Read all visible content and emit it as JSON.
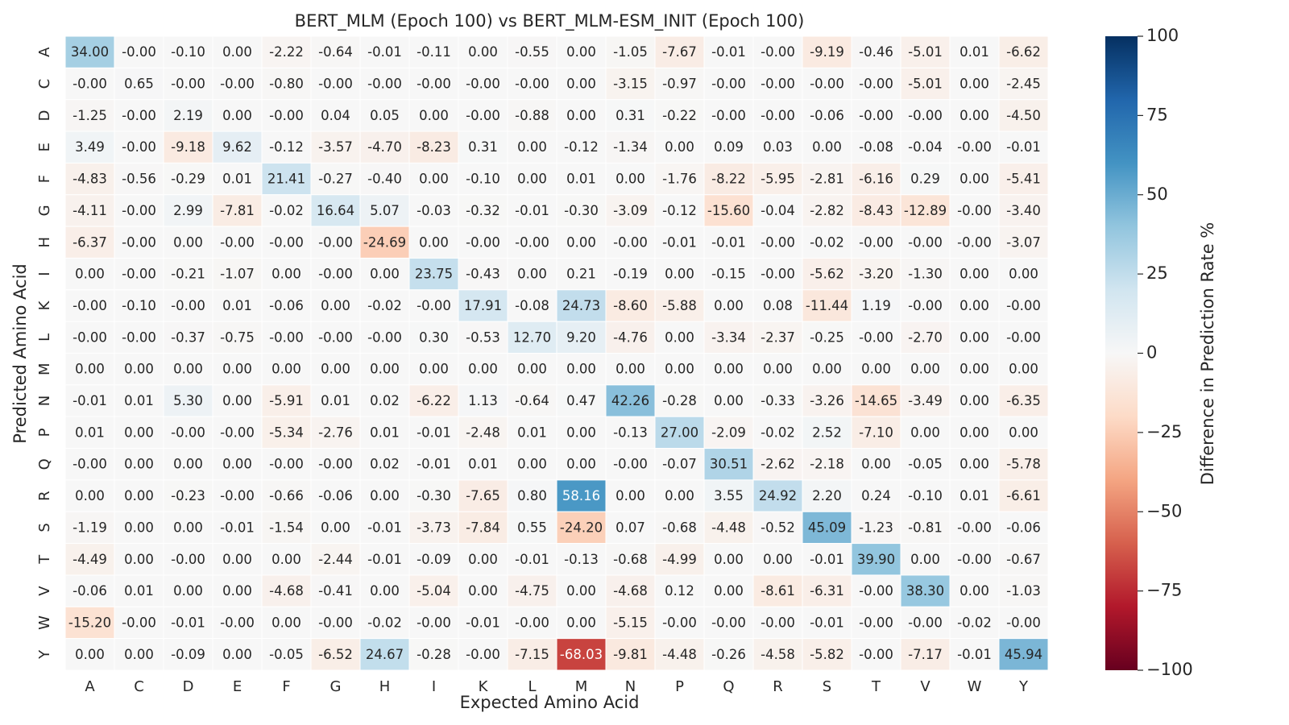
{
  "chart_data": {
    "type": "heatmap",
    "title": "BERT_MLM (Epoch 100) vs BERT_MLM-ESM_INIT (Epoch 100)",
    "xlabel": "Expected Amino Acid",
    "ylabel": "Predicted Amino Acid",
    "colorbar_label": "Difference in Prediction Rate %",
    "colorbar_ticks": [
      100,
      75,
      50,
      25,
      0,
      -25,
      -50,
      -75,
      -100
    ],
    "colorbar_tick_labels": [
      "100",
      "75",
      "50",
      "25",
      "0",
      "−25",
      "−50",
      "−75",
      "−100"
    ],
    "vmin": -100,
    "vmax": 100,
    "colormap": "RdBu",
    "x_categories": [
      "A",
      "C",
      "D",
      "E",
      "F",
      "G",
      "H",
      "I",
      "K",
      "L",
      "M",
      "N",
      "P",
      "Q",
      "R",
      "S",
      "T",
      "V",
      "W",
      "Y"
    ],
    "y_categories": [
      "A",
      "C",
      "D",
      "E",
      "F",
      "G",
      "H",
      "I",
      "K",
      "L",
      "M",
      "N",
      "P",
      "Q",
      "R",
      "S",
      "T",
      "V",
      "W",
      "Y"
    ],
    "values": [
      [
        "34.00",
        "-0.00",
        "-0.10",
        "0.00",
        "-2.22",
        "-0.64",
        "-0.01",
        "-0.11",
        "0.00",
        "-0.55",
        "0.00",
        "-1.05",
        "-7.67",
        "-0.01",
        "-0.00",
        "-9.19",
        "-0.46",
        "-5.01",
        "0.01",
        "-6.62"
      ],
      [
        "-0.00",
        "0.65",
        "-0.00",
        "-0.00",
        "-0.80",
        "-0.00",
        "-0.00",
        "-0.00",
        "-0.00",
        "-0.00",
        "0.00",
        "-3.15",
        "-0.97",
        "-0.00",
        "-0.00",
        "-0.00",
        "-0.00",
        "-5.01",
        "0.00",
        "-2.45"
      ],
      [
        "-1.25",
        "-0.00",
        "2.19",
        "0.00",
        "-0.00",
        "0.04",
        "0.05",
        "0.00",
        "-0.00",
        "-0.88",
        "0.00",
        "0.31",
        "-0.22",
        "-0.00",
        "-0.00",
        "-0.06",
        "-0.00",
        "-0.00",
        "0.00",
        "-4.50"
      ],
      [
        "3.49",
        "-0.00",
        "-9.18",
        "9.62",
        "-0.12",
        "-3.57",
        "-4.70",
        "-8.23",
        "0.31",
        "0.00",
        "-0.12",
        "-1.34",
        "0.00",
        "0.09",
        "0.03",
        "0.00",
        "-0.08",
        "-0.04",
        "-0.00",
        "-0.01"
      ],
      [
        "-4.83",
        "-0.56",
        "-0.29",
        "0.01",
        "21.41",
        "-0.27",
        "-0.40",
        "0.00",
        "-0.10",
        "0.00",
        "0.01",
        "0.00",
        "-1.76",
        "-8.22",
        "-5.95",
        "-2.81",
        "-6.16",
        "0.29",
        "0.00",
        "-5.41"
      ],
      [
        "-4.11",
        "-0.00",
        "2.99",
        "-7.81",
        "-0.02",
        "16.64",
        "5.07",
        "-0.03",
        "-0.32",
        "-0.01",
        "-0.30",
        "-3.09",
        "-0.12",
        "-15.60",
        "-0.04",
        "-2.82",
        "-8.43",
        "-12.89",
        "-0.00",
        "-3.40"
      ],
      [
        "-6.37",
        "-0.00",
        "0.00",
        "-0.00",
        "-0.00",
        "-0.00",
        "-24.69",
        "0.00",
        "-0.00",
        "-0.00",
        "0.00",
        "-0.00",
        "-0.01",
        "-0.01",
        "-0.00",
        "-0.02",
        "-0.00",
        "-0.00",
        "-0.00",
        "-3.07"
      ],
      [
        "0.00",
        "-0.00",
        "-0.21",
        "-1.07",
        "0.00",
        "-0.00",
        "0.00",
        "23.75",
        "-0.43",
        "0.00",
        "0.21",
        "-0.19",
        "0.00",
        "-0.15",
        "-0.00",
        "-5.62",
        "-3.20",
        "-1.30",
        "0.00",
        "0.00"
      ],
      [
        "-0.00",
        "-0.10",
        "-0.00",
        "0.01",
        "-0.06",
        "0.00",
        "-0.02",
        "-0.00",
        "17.91",
        "-0.08",
        "24.73",
        "-8.60",
        "-5.88",
        "0.00",
        "0.08",
        "-11.44",
        "1.19",
        "-0.00",
        "0.00",
        "-0.00"
      ],
      [
        "-0.00",
        "-0.00",
        "-0.37",
        "-0.75",
        "-0.00",
        "-0.00",
        "-0.00",
        "0.30",
        "-0.53",
        "12.70",
        "9.20",
        "-4.76",
        "0.00",
        "-3.34",
        "-2.37",
        "-0.25",
        "-0.00",
        "-2.70",
        "0.00",
        "-0.00"
      ],
      [
        "0.00",
        "0.00",
        "0.00",
        "0.00",
        "0.00",
        "0.00",
        "0.00",
        "0.00",
        "0.00",
        "0.00",
        "0.00",
        "0.00",
        "0.00",
        "0.00",
        "0.00",
        "0.00",
        "0.00",
        "0.00",
        "0.00",
        "0.00"
      ],
      [
        "-0.01",
        "0.01",
        "5.30",
        "0.00",
        "-5.91",
        "0.01",
        "0.02",
        "-6.22",
        "1.13",
        "-0.64",
        "0.47",
        "42.26",
        "-0.28",
        "0.00",
        "-0.33",
        "-3.26",
        "-14.65",
        "-3.49",
        "0.00",
        "-6.35"
      ],
      [
        "0.01",
        "0.00",
        "-0.00",
        "-0.00",
        "-5.34",
        "-2.76",
        "0.01",
        "-0.01",
        "-2.48",
        "0.01",
        "0.00",
        "-0.13",
        "27.00",
        "-2.09",
        "-0.02",
        "2.52",
        "-7.10",
        "0.00",
        "0.00",
        "0.00"
      ],
      [
        "-0.00",
        "0.00",
        "0.00",
        "0.00",
        "-0.00",
        "-0.00",
        "0.02",
        "-0.01",
        "0.01",
        "0.00",
        "0.00",
        "-0.00",
        "-0.07",
        "30.51",
        "-2.62",
        "-2.18",
        "0.00",
        "-0.05",
        "0.00",
        "-5.78"
      ],
      [
        "0.00",
        "0.00",
        "-0.23",
        "-0.00",
        "-0.66",
        "-0.06",
        "0.00",
        "-0.30",
        "-7.65",
        "0.80",
        "58.16",
        "0.00",
        "0.00",
        "3.55",
        "24.92",
        "2.20",
        "0.24",
        "-0.10",
        "0.01",
        "-6.61"
      ],
      [
        "-1.19",
        "0.00",
        "0.00",
        "-0.01",
        "-1.54",
        "0.00",
        "-0.01",
        "-3.73",
        "-7.84",
        "0.55",
        "-24.20",
        "0.07",
        "-0.68",
        "-4.48",
        "-0.52",
        "45.09",
        "-1.23",
        "-0.81",
        "-0.00",
        "-0.06"
      ],
      [
        "-4.49",
        "0.00",
        "-0.00",
        "0.00",
        "0.00",
        "-2.44",
        "-0.01",
        "-0.09",
        "0.00",
        "-0.01",
        "-0.13",
        "-0.68",
        "-4.99",
        "0.00",
        "0.00",
        "-0.01",
        "39.90",
        "0.00",
        "-0.00",
        "-0.67"
      ],
      [
        "-0.06",
        "0.01",
        "0.00",
        "0.00",
        "-4.68",
        "-0.41",
        "0.00",
        "-5.04",
        "0.00",
        "-4.75",
        "0.00",
        "-4.68",
        "0.12",
        "0.00",
        "-8.61",
        "-6.31",
        "-0.00",
        "38.30",
        "0.00",
        "-1.03"
      ],
      [
        "-15.20",
        "-0.00",
        "-0.01",
        "-0.00",
        "0.00",
        "-0.00",
        "-0.02",
        "-0.00",
        "-0.01",
        "-0.00",
        "0.00",
        "-5.15",
        "-0.00",
        "-0.00",
        "-0.00",
        "-0.01",
        "-0.00",
        "-0.00",
        "-0.02",
        "-0.00"
      ],
      [
        "0.00",
        "0.00",
        "-0.09",
        "0.00",
        "-0.05",
        "-6.52",
        "24.67",
        "-0.28",
        "-0.00",
        "-7.15",
        "-68.03",
        "-9.81",
        "-4.48",
        "-0.26",
        "-4.58",
        "-5.82",
        "-0.00",
        "-7.17",
        "-0.01",
        "45.94"
      ]
    ]
  }
}
